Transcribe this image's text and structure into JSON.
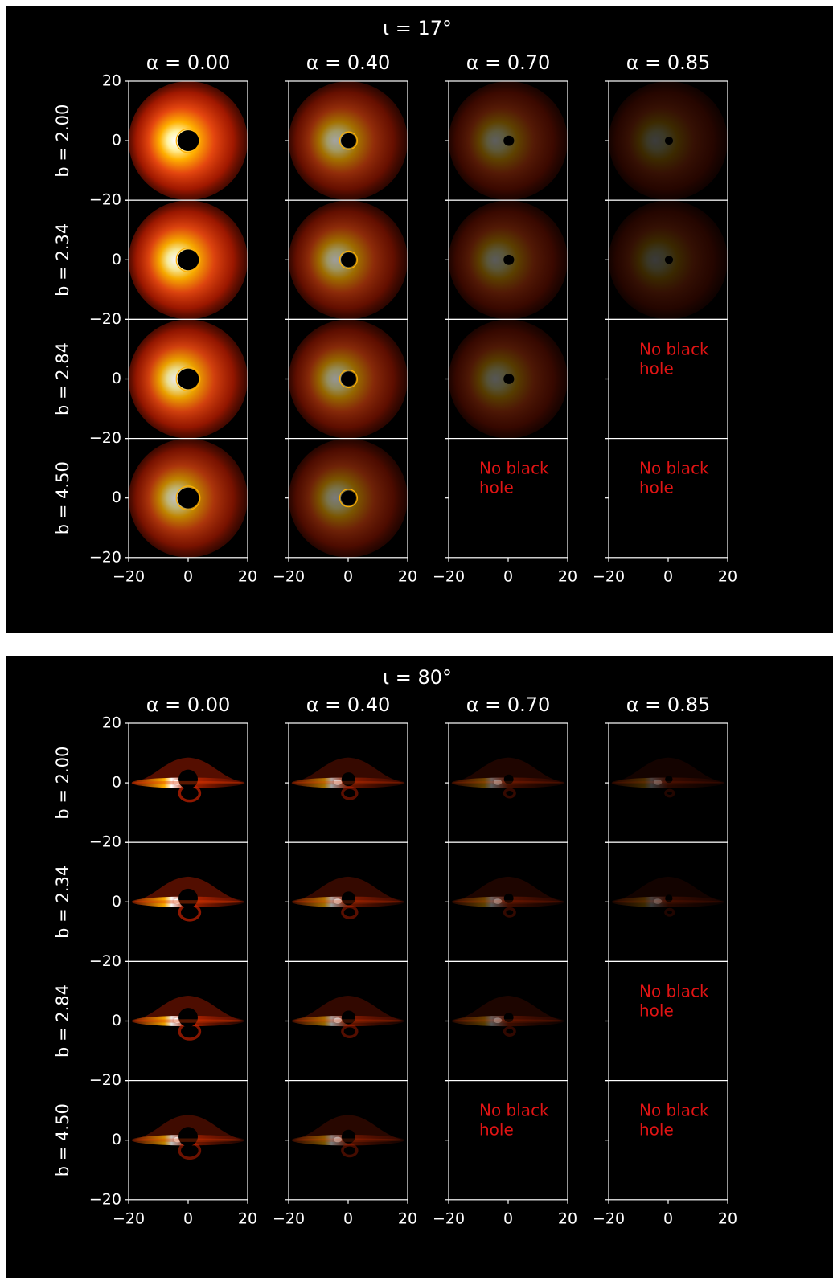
{
  "figure": {
    "background": "#000000",
    "page_background": "#ffffff",
    "axis_color": "#ffffff",
    "annotation_color": "#e11414",
    "colormap": "hot"
  },
  "chart_data": [
    {
      "type": "heatmap",
      "title": "ι = 17°",
      "inclination_deg": 17,
      "columns": [
        "α = 0.00",
        "α = 0.40",
        "α = 0.70",
        "α = 0.85"
      ],
      "alpha": [
        0.0,
        0.4,
        0.7,
        0.85
      ],
      "rows": [
        "b = 2.00",
        "b = 2.34",
        "b = 2.84",
        "b = 4.50"
      ],
      "b": [
        2.0,
        2.34,
        2.84,
        4.5
      ],
      "xlim": [
        -20,
        20
      ],
      "ylim": [
        -20,
        20
      ],
      "xticks": [
        "−20",
        "0",
        "20"
      ],
      "yticks": [
        "20",
        "0",
        "−20"
      ],
      "missing_text": "No black\nhole",
      "has_black_hole": [
        [
          true,
          true,
          true,
          true
        ],
        [
          true,
          true,
          true,
          true
        ],
        [
          true,
          true,
          true,
          false
        ],
        [
          true,
          true,
          false,
          false
        ]
      ],
      "grid": false,
      "legend": "none"
    },
    {
      "type": "heatmap",
      "title": "ι = 80°",
      "inclination_deg": 80,
      "columns": [
        "α = 0.00",
        "α = 0.40",
        "α = 0.70",
        "α = 0.85"
      ],
      "alpha": [
        0.0,
        0.4,
        0.7,
        0.85
      ],
      "rows": [
        "b = 2.00",
        "b = 2.34",
        "b = 2.84",
        "b = 4.50"
      ],
      "b": [
        2.0,
        2.34,
        2.84,
        4.5
      ],
      "xlim": [
        -20,
        20
      ],
      "ylim": [
        -20,
        20
      ],
      "xticks": [
        "−20",
        "0",
        "20"
      ],
      "yticks": [
        "20",
        "0",
        "−20"
      ],
      "missing_text": "No black\nhole",
      "has_black_hole": [
        [
          true,
          true,
          true,
          true
        ],
        [
          true,
          true,
          true,
          true
        ],
        [
          true,
          true,
          true,
          false
        ],
        [
          true,
          true,
          false,
          false
        ]
      ],
      "grid": false,
      "legend": "none"
    }
  ]
}
